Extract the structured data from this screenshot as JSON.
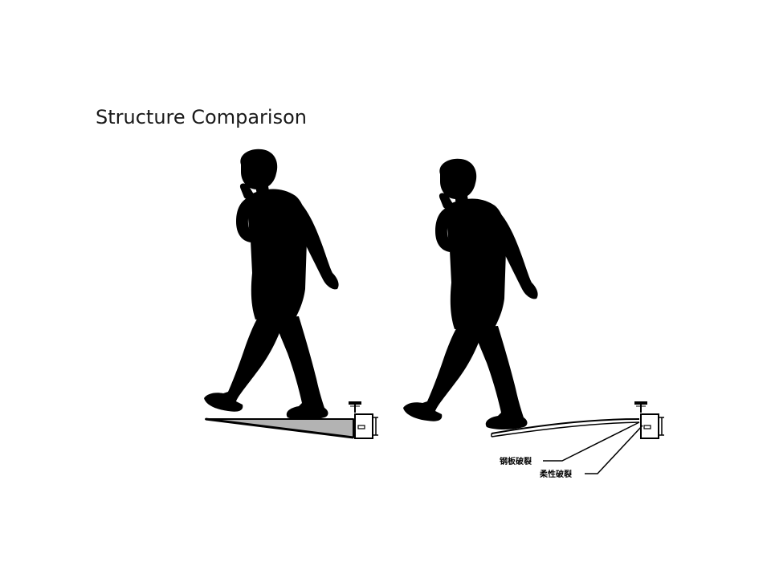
{
  "slide": {
    "title": "Structure Comparison"
  },
  "figures": {
    "left": {
      "subject": "walking-person-silhouette",
      "structure": "rigid-wedge-platform",
      "icons": [
        "person-silhouette-icon",
        "wedge-platform-icon",
        "pivot-switch-icon"
      ]
    },
    "right": {
      "subject": "walking-person-silhouette",
      "structure": "flexible-curved-platform",
      "callouts": [
        "钢板破裂",
        "柔性破裂"
      ],
      "icons": [
        "person-silhouette-icon",
        "curved-platform-icon",
        "pivot-switch-icon"
      ]
    }
  },
  "colors": {
    "silhouette": "#000000",
    "wedge_fill": "#b3b3b3",
    "background": "#ffffff"
  }
}
